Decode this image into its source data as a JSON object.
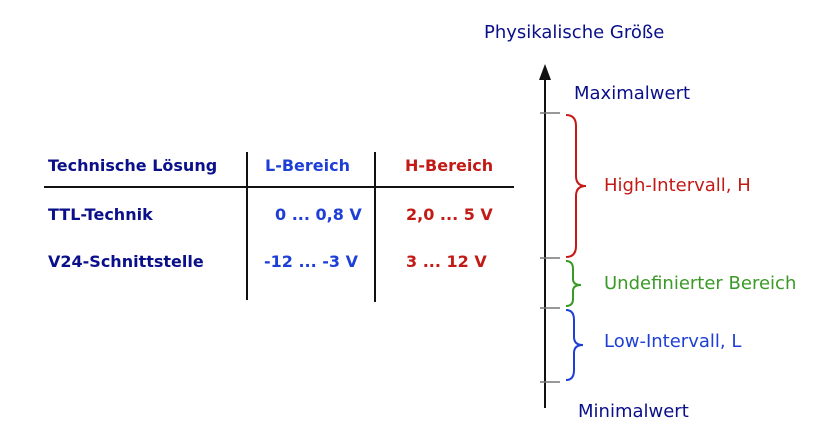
{
  "table": {
    "headers": {
      "col1": "Technische Lösung",
      "col2": "L-Bereich",
      "col3": "H-Bereich"
    },
    "rows": [
      {
        "name": "TTL-Technik",
        "low": "0 ... 0,8 V",
        "high": "2,0 ... 5 V"
      },
      {
        "name": "V24-Schnittstelle",
        "low": "-12 ... -3 V",
        "high": "3 ... 12 V"
      }
    ]
  },
  "scale": {
    "axis_title": "Physikalische Größe",
    "max_label": "Maximalwert",
    "min_label": "Minimalwert",
    "high_label": "High-Intervall, H",
    "undefined_label": "Undefinierter Bereich",
    "low_label": "Low-Intervall, L"
  },
  "colors": {
    "navy": "#0a0f8a",
    "blue": "#1e3fd6",
    "red": "#c21a15",
    "green": "#3a9a26"
  }
}
